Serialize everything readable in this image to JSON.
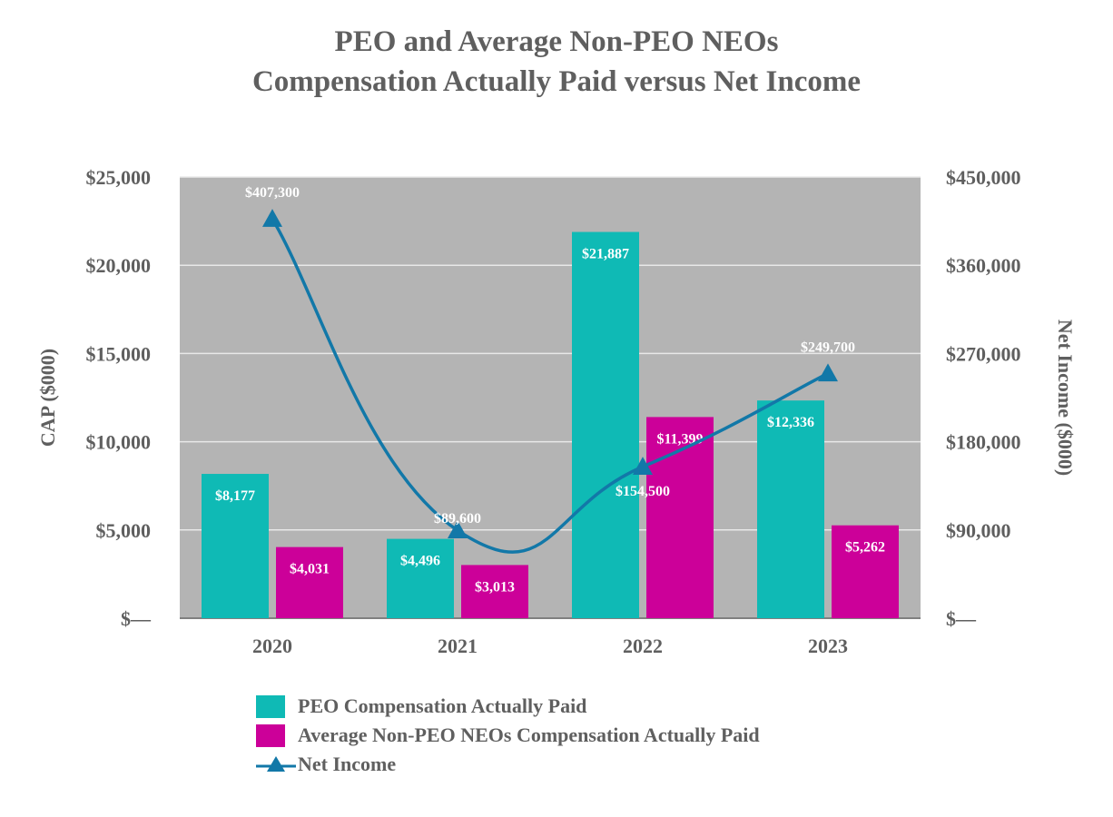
{
  "title": {
    "line1": "PEO and Average Non-PEO NEOs",
    "line2": "Compensation Actually Paid versus Net Income"
  },
  "colors": {
    "peo": "#0fbab5",
    "neo": "#cc0099",
    "line": "#1278a8",
    "plot_bg": "#b4b4b4",
    "gridline": "#e8e8e8",
    "axis_text": "#5f5f5f",
    "label_text": "#ffffff"
  },
  "legend": {
    "peo_label": "PEO Compensation Actually Paid",
    "neo_label": "Average Non-PEO NEOs Compensation Actually Paid",
    "line_label": "Net Income"
  },
  "chart_data": {
    "type": "bar",
    "categories": [
      "2020",
      "2021",
      "2022",
      "2023"
    ],
    "series": [
      {
        "name": "PEO Compensation Actually Paid",
        "axis": "left",
        "values": [
          8177,
          4496,
          21887,
          12336
        ],
        "labels": [
          "$8,177",
          "$4,496",
          "$21,887",
          "$12,336"
        ]
      },
      {
        "name": "Average Non-PEO NEOs Compensation Actually Paid",
        "axis": "left",
        "values": [
          4031,
          3013,
          11399,
          5262
        ],
        "labels": [
          "$4,031",
          "$3,013",
          "$11,399",
          "$5,262"
        ]
      },
      {
        "name": "Net Income",
        "type": "line",
        "axis": "right",
        "marker": "triangle",
        "values": [
          407300,
          89600,
          154500,
          249700
        ],
        "labels": [
          "$407,300",
          "$89,600",
          "$154,500",
          "$249,700"
        ]
      }
    ],
    "ylabel": "CAP ($000)",
    "y2label": "Net Income ($000)",
    "ylim": [
      0,
      25000
    ],
    "y2lim": [
      0,
      450000
    ],
    "yticks": [
      0,
      5000,
      10000,
      15000,
      20000,
      25000
    ],
    "ytick_labels": [
      "$—",
      "$5,000",
      "$10,000",
      "$15,000",
      "$20,000",
      "$25,000"
    ],
    "y2ticks": [
      0,
      90000,
      180000,
      270000,
      360000,
      450000
    ],
    "y2tick_labels": [
      "$—",
      "$90,000",
      "$180,000",
      "$270,000",
      "$360,000",
      "$450,000"
    ],
    "grid": true,
    "legend_position": "bottom"
  }
}
